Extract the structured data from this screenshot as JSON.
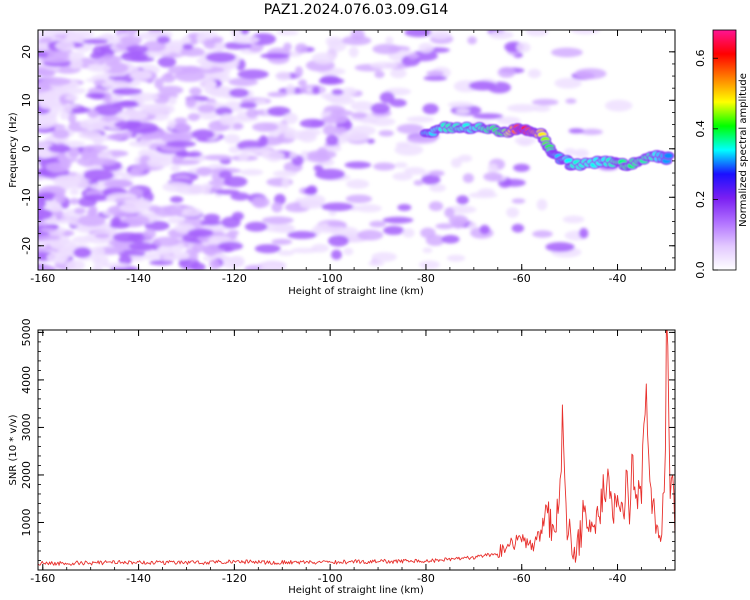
{
  "title": "PAZ1.2024.076.03.09.G14",
  "chart_data": [
    {
      "type": "heatmap",
      "title": "PAZ1.2024.076.03.09.G14",
      "xlabel": "Height of straight line (km)",
      "ylabel": "Frequency (Hz)",
      "xlim": [
        -161,
        -28
      ],
      "ylim": [
        -25,
        24.5
      ],
      "x_ticks": [
        -160,
        -140,
        -120,
        -100,
        -80,
        -60,
        -40
      ],
      "y_ticks": [
        -20,
        -10,
        0,
        10,
        20
      ],
      "colorbar": {
        "label": "Normalized spectral amplitude",
        "range": [
          0,
          0.68
        ],
        "ticks": [
          0.0,
          0.2,
          0.4,
          0.6
        ],
        "colormap": [
          "#ffffff",
          "#e2c8ff",
          "#b070ff",
          "#7a1ff2",
          "#1a10ff",
          "#00ffff",
          "#00ff00",
          "#ffff00",
          "#ff8000",
          "#ff0000",
          "#ff1493"
        ]
      },
      "signal_track": [
        {
          "x": -80,
          "y": 3.5,
          "a": 0.32
        },
        {
          "x": -75,
          "y": 4.5,
          "a": 0.36
        },
        {
          "x": -70,
          "y": 4.2,
          "a": 0.34
        },
        {
          "x": -64,
          "y": 3.5,
          "a": 0.4
        },
        {
          "x": -60,
          "y": 4.2,
          "a": 0.62
        },
        {
          "x": -56,
          "y": 3.0,
          "a": 0.5
        },
        {
          "x": -53,
          "y": -1.5,
          "a": 0.32
        },
        {
          "x": -49,
          "y": -3.5,
          "a": 0.35
        },
        {
          "x": -43,
          "y": -2.5,
          "a": 0.34
        },
        {
          "x": -38,
          "y": -3.5,
          "a": 0.38
        },
        {
          "x": -33,
          "y": -1.5,
          "a": 0.36
        },
        {
          "x": -29,
          "y": -2.0,
          "a": 0.3
        }
      ]
    },
    {
      "type": "line",
      "xlabel": "Height of straight line (km)",
      "ylabel": "SNR (10 * v/v)",
      "xlim": [
        -161,
        -28
      ],
      "ylim": [
        0,
        5050
      ],
      "x_ticks": [
        -160,
        -140,
        -120,
        -100,
        -80,
        -60,
        -40
      ],
      "y_ticks": [
        1000,
        2000,
        3000,
        4000,
        5000
      ],
      "series": [
        {
          "color": "#e8302c",
          "x": [
            -161,
            -150,
            -140,
            -130,
            -120,
            -110,
            -100,
            -90,
            -80,
            -74,
            -70,
            -66,
            -64,
            -62,
            -60,
            -58,
            -56,
            -55,
            -54,
            -53,
            -52,
            -51.5,
            -51,
            -50.5,
            -50,
            -49.5,
            -49,
            -48,
            -47,
            -46,
            -45,
            -44,
            -43,
            -42.5,
            -42,
            -41,
            -40,
            -39,
            -38,
            -37.5,
            -37,
            -36,
            -35,
            -34.5,
            -34,
            -33.5,
            -33,
            -32,
            -31,
            -30.5,
            -30,
            -29.8,
            -29.5,
            -29,
            -28.5,
            -28
          ],
          "y": [
            140,
            150,
            160,
            155,
            170,
            160,
            165,
            180,
            190,
            230,
            260,
            330,
            420,
            560,
            650,
            500,
            740,
            1300,
            900,
            900,
            1700,
            3200,
            2100,
            900,
            700,
            520,
            460,
            500,
            1350,
            620,
            1250,
            900,
            1650,
            1200,
            2300,
            1200,
            1600,
            1050,
            1950,
            900,
            2200,
            1400,
            1700,
            3400,
            3750,
            2500,
            1600,
            1000,
            800,
            1400,
            2600,
            5000,
            4500,
            1200,
            2200,
            700
          ]
        }
      ]
    }
  ]
}
